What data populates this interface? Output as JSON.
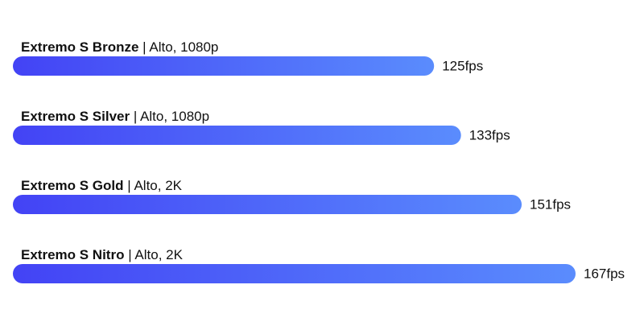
{
  "chart_data": {
    "type": "bar",
    "orientation": "horizontal",
    "categories": [
      "Extremo S Bronze",
      "Extremo S Silver",
      "Extremo S Gold",
      "Extremo S Nitro"
    ],
    "details": [
      "| Alto, 1080p",
      "| Alto, 1080p",
      "| Alto, 2K",
      "| Alto, 2K"
    ],
    "values": [
      125,
      133,
      151,
      167
    ],
    "value_labels": [
      "125fps",
      "133fps",
      "151fps",
      "167fps"
    ],
    "gradient": [
      "#4343f5",
      "#5a8cfd"
    ]
  }
}
